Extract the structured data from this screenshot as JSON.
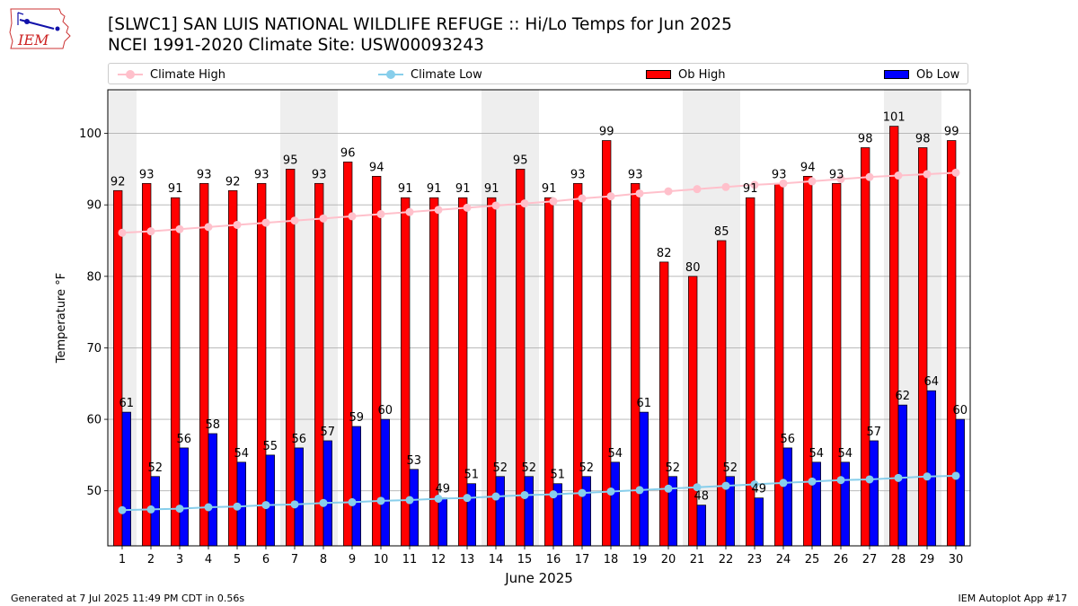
{
  "title_line1": "[SLWC1] SAN LUIS NATIONAL WILDLIFE REFUGE :: Hi/Lo Temps for Jun 2025",
  "title_line2": "NCEI 1991-2020 Climate Site: USW00093243",
  "logo_text": "IEM",
  "footer_left": "Generated at 7 Jul 2025 11:49 PM CDT in 0.56s",
  "footer_right": "IEM Autoplot App #17",
  "colors": {
    "ob_high": "#ff0000",
    "ob_low": "#0000ff",
    "climate_high": "#ffc0cb",
    "climate_low": "#87ceeb",
    "weekend_band": "#eeeeee",
    "grid": "#b0b0b0"
  },
  "chart_data": {
    "type": "bar",
    "xlabel": "June 2025",
    "ylabel": "Temperature °F",
    "ylim": [
      42.3,
      106.1
    ],
    "yticks": [
      50,
      60,
      70,
      80,
      90,
      100
    ],
    "grid": "horizontal",
    "legend_position": "top",
    "categories": [
      "1",
      "2",
      "3",
      "4",
      "5",
      "6",
      "7",
      "8",
      "9",
      "10",
      "11",
      "12",
      "13",
      "14",
      "15",
      "16",
      "17",
      "18",
      "19",
      "20",
      "21",
      "22",
      "23",
      "24",
      "25",
      "26",
      "27",
      "28",
      "29",
      "30"
    ],
    "weekend_days": [
      1,
      7,
      8,
      14,
      15,
      21,
      22,
      28,
      29
    ],
    "series": [
      {
        "name": "Ob High",
        "kind": "bar",
        "values": [
          92,
          93,
          91,
          93,
          92,
          93,
          95,
          93,
          96,
          94,
          91,
          91,
          91,
          91,
          95,
          91,
          93,
          99,
          93,
          82,
          80,
          85,
          91,
          93,
          94,
          93,
          98,
          101,
          98,
          99
        ]
      },
      {
        "name": "Ob Low",
        "kind": "bar",
        "values": [
          61,
          52,
          56,
          58,
          54,
          55,
          56,
          57,
          59,
          60,
          53,
          49,
          51,
          52,
          52,
          51,
          52,
          54,
          61,
          52,
          48,
          52,
          49,
          56,
          54,
          54,
          57,
          62,
          64,
          60
        ]
      },
      {
        "name": "Climate High",
        "kind": "line",
        "values": [
          86.1,
          86.3,
          86.6,
          86.9,
          87.2,
          87.5,
          87.8,
          88.1,
          88.4,
          88.7,
          89.0,
          89.3,
          89.6,
          89.9,
          90.2,
          90.5,
          90.9,
          91.2,
          91.6,
          91.9,
          92.2,
          92.5,
          92.8,
          93.0,
          93.3,
          93.6,
          93.9,
          94.1,
          94.3,
          94.5
        ]
      },
      {
        "name": "Climate Low",
        "kind": "line",
        "values": [
          47.3,
          47.4,
          47.5,
          47.7,
          47.8,
          48.0,
          48.1,
          48.3,
          48.4,
          48.6,
          48.7,
          48.9,
          49.0,
          49.2,
          49.4,
          49.5,
          49.7,
          49.9,
          50.1,
          50.3,
          50.5,
          50.7,
          50.9,
          51.1,
          51.3,
          51.5,
          51.6,
          51.8,
          52.0,
          52.1
        ]
      }
    ]
  }
}
